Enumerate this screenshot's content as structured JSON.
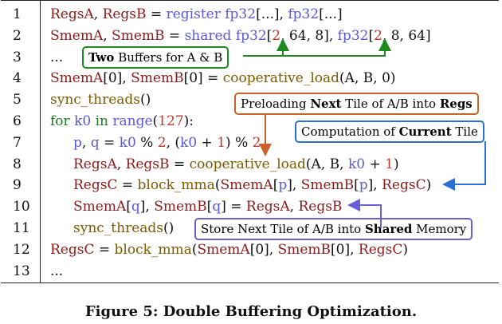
{
  "lines": [
    {
      "n": "1",
      "tokens": [
        {
          "t": "RegsA",
          "c": "r"
        },
        {
          "t": ", ",
          "c": "bk"
        },
        {
          "t": "RegsB",
          "c": "r"
        },
        {
          "t": " = ",
          "c": "bk"
        },
        {
          "t": "register fp32",
          "c": "b"
        },
        {
          "t": "[...]",
          "c": "bk"
        },
        {
          "t": ", ",
          "c": "bk"
        },
        {
          "t": "fp32",
          "c": "b"
        },
        {
          "t": "[...]",
          "c": "bk"
        }
      ]
    },
    {
      "n": "2",
      "tokens": [
        {
          "t": "SmemA",
          "c": "r"
        },
        {
          "t": ", ",
          "c": "bk"
        },
        {
          "t": "SmemB",
          "c": "r"
        },
        {
          "t": " = ",
          "c": "bk"
        },
        {
          "t": "shared fp32",
          "c": "b"
        },
        {
          "t": "[",
          "c": "bk"
        },
        {
          "t": "2",
          "c": "rn"
        },
        {
          "t": ", 64, 8], ",
          "c": "bk"
        },
        {
          "t": "fp32",
          "c": "b"
        },
        {
          "t": "[",
          "c": "bk"
        },
        {
          "t": "2",
          "c": "rn"
        },
        {
          "t": ", 8, 64]",
          "c": "bk"
        }
      ]
    },
    {
      "n": "3",
      "tokens": [
        {
          "t": "...",
          "c": "bk"
        }
      ]
    },
    {
      "n": "4",
      "tokens": [
        {
          "t": "SmemA",
          "c": "r"
        },
        {
          "t": "[0], ",
          "c": "bk"
        },
        {
          "t": "SmemB",
          "c": "r"
        },
        {
          "t": "[0] = ",
          "c": "bk"
        },
        {
          "t": "cooperative_load",
          "c": "ol"
        },
        {
          "t": "(A, B, 0)",
          "c": "bk"
        }
      ]
    },
    {
      "n": "5",
      "tokens": [
        {
          "t": "sync_threads",
          "c": "ol"
        },
        {
          "t": "()",
          "c": "bk"
        }
      ]
    },
    {
      "n": "6",
      "tokens": [
        {
          "t": "for ",
          "c": "g"
        },
        {
          "t": "k0 ",
          "c": "b"
        },
        {
          "t": "in ",
          "c": "g"
        },
        {
          "t": "range",
          "c": "b"
        },
        {
          "t": "(",
          "c": "bk"
        },
        {
          "t": "127",
          "c": "rn"
        },
        {
          "t": "):",
          "c": "bk"
        }
      ]
    },
    {
      "n": "7",
      "indent": true,
      "tokens": [
        {
          "t": "p",
          "c": "b"
        },
        {
          "t": ", ",
          "c": "bk"
        },
        {
          "t": "q",
          "c": "b"
        },
        {
          "t": " = ",
          "c": "bk"
        },
        {
          "t": "k0",
          "c": "b"
        },
        {
          "t": " % ",
          "c": "bk"
        },
        {
          "t": "2",
          "c": "rn"
        },
        {
          "t": ", (",
          "c": "bk"
        },
        {
          "t": "k0",
          "c": "b"
        },
        {
          "t": " + ",
          "c": "bk"
        },
        {
          "t": "1",
          "c": "rn"
        },
        {
          "t": ") % ",
          "c": "bk"
        },
        {
          "t": "2",
          "c": "rn"
        }
      ]
    },
    {
      "n": "8",
      "indent": true,
      "tokens": [
        {
          "t": "RegsA",
          "c": "r"
        },
        {
          "t": ", ",
          "c": "bk"
        },
        {
          "t": "RegsB",
          "c": "r"
        },
        {
          "t": " = ",
          "c": "bk"
        },
        {
          "t": "cooperative_load",
          "c": "ol"
        },
        {
          "t": "(A, B, ",
          "c": "bk"
        },
        {
          "t": "k0",
          "c": "b"
        },
        {
          "t": " + ",
          "c": "bk"
        },
        {
          "t": "1",
          "c": "rn"
        },
        {
          "t": ")",
          "c": "bk"
        }
      ]
    },
    {
      "n": "9",
      "indent": true,
      "tokens": [
        {
          "t": "RegsC",
          "c": "r"
        },
        {
          "t": " = ",
          "c": "bk"
        },
        {
          "t": "block_mma",
          "c": "ol"
        },
        {
          "t": "(",
          "c": "bk"
        },
        {
          "t": "SmemA",
          "c": "r"
        },
        {
          "t": "[",
          "c": "bk"
        },
        {
          "t": "p",
          "c": "b"
        },
        {
          "t": "], ",
          "c": "bk"
        },
        {
          "t": "SmemB",
          "c": "r"
        },
        {
          "t": "[",
          "c": "bk"
        },
        {
          "t": "p",
          "c": "b"
        },
        {
          "t": "], ",
          "c": "bk"
        },
        {
          "t": "RegsC",
          "c": "r"
        },
        {
          "t": ")",
          "c": "bk"
        }
      ]
    },
    {
      "n": "10",
      "indent": true,
      "tokens": [
        {
          "t": "SmemA",
          "c": "r"
        },
        {
          "t": "[",
          "c": "bk"
        },
        {
          "t": "q",
          "c": "b"
        },
        {
          "t": "], ",
          "c": "bk"
        },
        {
          "t": "SmemB",
          "c": "r"
        },
        {
          "t": "[",
          "c": "bk"
        },
        {
          "t": "q",
          "c": "b"
        },
        {
          "t": "] = ",
          "c": "bk"
        },
        {
          "t": "RegsA",
          "c": "r"
        },
        {
          "t": ", ",
          "c": "bk"
        },
        {
          "t": "RegsB",
          "c": "r"
        }
      ]
    },
    {
      "n": "11",
      "indent": true,
      "tokens": [
        {
          "t": "sync_threads",
          "c": "ol"
        },
        {
          "t": "()",
          "c": "bk"
        }
      ]
    },
    {
      "n": "12",
      "tokens": [
        {
          "t": "RegsC",
          "c": "r"
        },
        {
          "t": " = ",
          "c": "bk"
        },
        {
          "t": "block_mma",
          "c": "ol"
        },
        {
          "t": "(",
          "c": "bk"
        },
        {
          "t": "SmemA",
          "c": "r"
        },
        {
          "t": "[0], ",
          "c": "bk"
        },
        {
          "t": "SmemB",
          "c": "r"
        },
        {
          "t": "[0], ",
          "c": "bk"
        },
        {
          "t": "RegsC",
          "c": "r"
        },
        {
          "t": ")",
          "c": "bk"
        }
      ]
    },
    {
      "n": "13",
      "tokens": [
        {
          "t": "...",
          "c": "bk"
        }
      ]
    }
  ],
  "annotations": {
    "two_buffers": {
      "bold": "Two",
      "rest": " Buffers for A & B"
    },
    "preload": {
      "pre": "Preloading ",
      "bold1": "Next",
      "mid": " Tile of A/B into ",
      "bold2": "Regs"
    },
    "compute": {
      "pre": "Computation of ",
      "bold": "Current",
      "post": " Tile"
    },
    "store": {
      "pre": "Store Next Tile of A/B into ",
      "bold": "Shared",
      "post": " Memory"
    }
  },
  "caption": "Figure 5: Double Buffering Optimization."
}
